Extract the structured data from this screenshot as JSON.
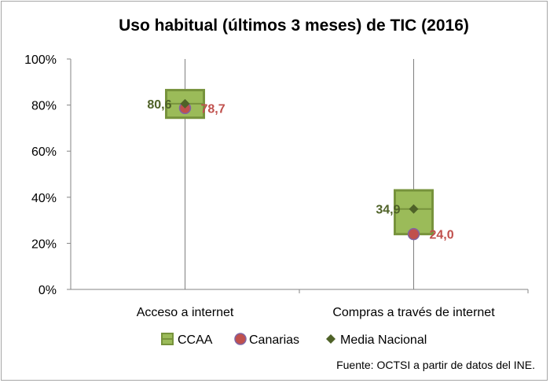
{
  "chart_data": {
    "type": "scatter",
    "title": "Uso habitual (últimos 3 meses) de TIC (2016)",
    "categories": [
      "Acceso a internet",
      "Compras a través de internet"
    ],
    "y_ticks": [
      "0%",
      "20%",
      "40%",
      "60%",
      "80%",
      "100%"
    ],
    "ylim": [
      0,
      100
    ],
    "grid": false,
    "legend_position": "bottom",
    "series": [
      {
        "name": "CCAA",
        "marker": "box",
        "color": "#9bbb59",
        "border": "#77933c",
        "ranges": [
          [
            74.5,
            86.5
          ],
          [
            24.0,
            43.0
          ]
        ]
      },
      {
        "name": "Canarias",
        "marker": "circle",
        "color": "#c0504d",
        "values": [
          78.7,
          24.0
        ],
        "labels": [
          "78,7",
          "24,0"
        ]
      },
      {
        "name": "Media Nacional",
        "marker": "diamond",
        "color": "#4f6228",
        "values": [
          80.6,
          34.9
        ],
        "labels": [
          "80,6",
          "34,9"
        ]
      }
    ],
    "source": "Fuente: OCTSI a partir de datos del INE."
  }
}
